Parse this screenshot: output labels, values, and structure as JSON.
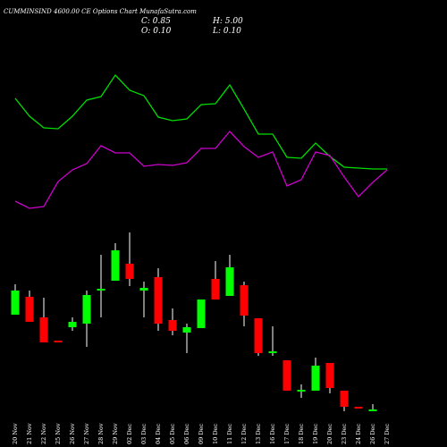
{
  "chart_data": {
    "type": "candlestick",
    "title": "CUMMINSIND 4600.00 CE Options Chart MunafaSutra.com",
    "info": [
      "C: 0.85",
      "H: 5.00",
      "O: 0.10",
      "L: 0.10"
    ],
    "categories": [
      "20 Nov",
      "21 Nov",
      "22 Nov",
      "25 Nov",
      "26 Nov",
      "27 Nov",
      "28 Nov",
      "29 Nov",
      "02 Dec",
      "03 Dec",
      "04 Dec",
      "05 Dec",
      "06 Dec",
      "09 Dec",
      "10 Dec",
      "11 Dec",
      "12 Dec",
      "13 Dec",
      "16 Dec",
      "17 Dec",
      "18 Dec",
      "19 Dec",
      "20 Dec",
      "23 Dec",
      "24 Dec",
      "26 Dec",
      "27 Dec"
    ],
    "open": [
      128,
      148,
      125,
      99,
      114,
      118,
      155,
      166,
      185,
      155,
      170,
      122,
      108,
      113,
      168,
      149,
      161,
      124,
      85,
      77,
      42,
      43,
      74,
      43,
      25,
      20,
      null
    ],
    "high": [
      162,
      155,
      147,
      99,
      125,
      155,
      195,
      208,
      220,
      165,
      180,
      135,
      118,
      145,
      188,
      195,
      165,
      124,
      115,
      77,
      50,
      80,
      74,
      43,
      25,
      28,
      null
    ],
    "low": [
      128,
      120,
      97,
      97,
      110,
      92,
      125,
      166,
      160,
      125,
      110,
      105,
      85,
      113,
      145,
      149,
      115,
      82,
      82,
      43,
      35,
      43,
      40,
      20,
      23,
      20,
      null
    ],
    "close": [
      155,
      120,
      97,
      97,
      120,
      150,
      157,
      200,
      168,
      158,
      118,
      110,
      114,
      145,
      145,
      181,
      127,
      85,
      87,
      43,
      44,
      71,
      46,
      25,
      23,
      22,
      null
    ],
    "up_color": "#00ff00",
    "down_color": "#ff0000",
    "lines": [
      {
        "color": "#00dd00",
        "values": [
          370,
          350,
          337,
          336,
          350,
          368,
          372,
          396,
          379,
          373,
          349,
          345,
          347,
          363,
          364,
          385,
          358,
          330,
          330,
          304,
          303,
          320,
          305,
          293,
          292,
          291,
          291
        ]
      },
      {
        "color": "#cc00cc",
        "values": [
          255,
          247,
          249,
          277,
          290,
          297,
          317,
          309,
          309,
          294,
          296,
          295,
          298,
          314,
          314,
          333,
          316,
          304,
          310,
          272,
          279,
          310,
          306,
          282,
          260,
          276,
          290
        ]
      }
    ],
    "ylim": [
      0,
      420
    ]
  }
}
